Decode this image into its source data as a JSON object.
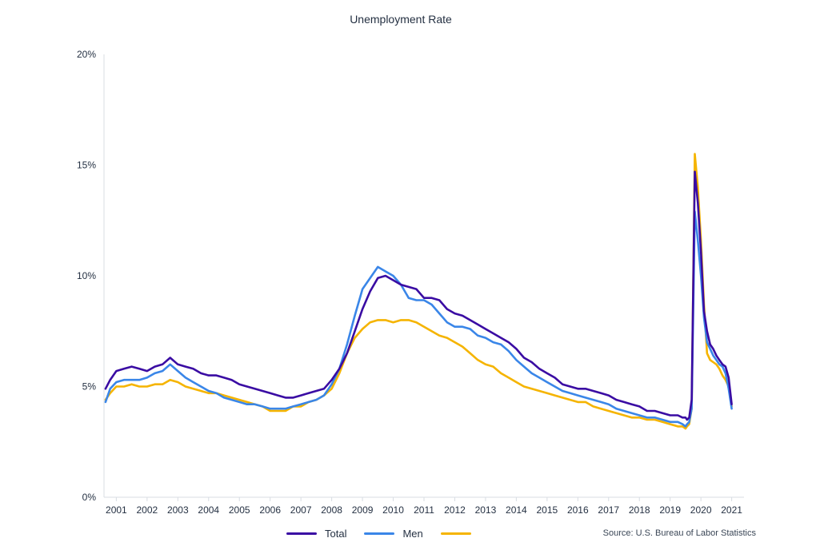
{
  "chart_data": {
    "type": "line",
    "title": "Unemployment Rate",
    "ylim": [
      0,
      20
    ],
    "y_ticks": [
      "0%",
      "5%",
      "10%",
      "15%",
      "20%"
    ],
    "y_tick_values": [
      0,
      5,
      10,
      15,
      20
    ],
    "xlim": [
      2000.6,
      2021.4
    ],
    "x_ticks": [
      "2001",
      "2002",
      "2003",
      "2004",
      "2005",
      "2006",
      "2007",
      "2008",
      "2009",
      "2010",
      "2011",
      "2012",
      "2013",
      "2014",
      "2015",
      "2016",
      "2017",
      "2018",
      "2019",
      "2020",
      "2021"
    ],
    "x_tick_values": [
      2001,
      2002,
      2003,
      2004,
      2005,
      2006,
      2007,
      2008,
      2009,
      2010,
      2011,
      2012,
      2013,
      2014,
      2015,
      2016,
      2017,
      2018,
      2019,
      2020,
      2021
    ],
    "grid": false,
    "legend_position": "bottom",
    "series": [
      {
        "name": "Total",
        "color": "#3a0ca3",
        "x": [
          2000.65,
          2000.8,
          2001.0,
          2001.25,
          2001.5,
          2001.75,
          2002.0,
          2002.25,
          2002.5,
          2002.75,
          2003.0,
          2003.25,
          2003.5,
          2003.75,
          2004.0,
          2004.25,
          2004.5,
          2004.75,
          2005.0,
          2005.25,
          2005.5,
          2005.75,
          2006.0,
          2006.25,
          2006.5,
          2006.75,
          2007.0,
          2007.25,
          2007.5,
          2007.75,
          2008.0,
          2008.25,
          2008.5,
          2008.75,
          2009.0,
          2009.25,
          2009.5,
          2009.75,
          2010.0,
          2010.25,
          2010.5,
          2010.75,
          2011.0,
          2011.25,
          2011.5,
          2011.75,
          2012.0,
          2012.25,
          2012.5,
          2012.75,
          2013.0,
          2013.25,
          2013.5,
          2013.75,
          2014.0,
          2014.25,
          2014.5,
          2014.75,
          2015.0,
          2015.25,
          2015.5,
          2015.75,
          2016.0,
          2016.25,
          2016.5,
          2016.75,
          2017.0,
          2017.25,
          2017.5,
          2017.75,
          2018.0,
          2018.25,
          2018.5,
          2018.75,
          2019.0,
          2019.25,
          2019.4,
          2019.5,
          2019.55,
          2019.62,
          2019.7,
          2019.8,
          2019.9,
          2020.0,
          2020.1,
          2020.2,
          2020.3,
          2020.4,
          2020.5,
          2020.6,
          2020.7,
          2020.8,
          2020.9,
          2021.0
        ],
        "y": [
          4.9,
          5.3,
          5.7,
          5.8,
          5.9,
          5.8,
          5.7,
          5.9,
          6.0,
          6.3,
          6.0,
          5.9,
          5.8,
          5.6,
          5.5,
          5.5,
          5.4,
          5.3,
          5.1,
          5.0,
          4.9,
          4.8,
          4.7,
          4.6,
          4.5,
          4.5,
          4.6,
          4.7,
          4.8,
          4.9,
          5.3,
          5.8,
          6.5,
          7.5,
          8.5,
          9.3,
          9.9,
          10.0,
          9.8,
          9.6,
          9.5,
          9.4,
          9.0,
          9.0,
          8.9,
          8.5,
          8.3,
          8.2,
          8.0,
          7.8,
          7.6,
          7.4,
          7.2,
          7.0,
          6.7,
          6.3,
          6.1,
          5.8,
          5.6,
          5.4,
          5.1,
          5.0,
          4.9,
          4.9,
          4.8,
          4.7,
          4.6,
          4.4,
          4.3,
          4.2,
          4.1,
          3.9,
          3.9,
          3.8,
          3.7,
          3.7,
          3.6,
          3.6,
          3.5,
          3.6,
          4.4,
          14.7,
          13.3,
          11.1,
          8.4,
          7.5,
          6.9,
          6.7,
          6.4,
          6.2,
          6.0,
          5.9,
          5.4,
          4.2
        ]
      },
      {
        "name": "Men",
        "color": "#3a86e8",
        "x": [
          2000.65,
          2000.8,
          2001.0,
          2001.25,
          2001.5,
          2001.75,
          2002.0,
          2002.25,
          2002.5,
          2002.75,
          2003.0,
          2003.25,
          2003.5,
          2003.75,
          2004.0,
          2004.25,
          2004.5,
          2004.75,
          2005.0,
          2005.25,
          2005.5,
          2005.75,
          2006.0,
          2006.25,
          2006.5,
          2006.75,
          2007.0,
          2007.25,
          2007.5,
          2007.75,
          2008.0,
          2008.25,
          2008.5,
          2008.75,
          2009.0,
          2009.25,
          2009.5,
          2009.75,
          2010.0,
          2010.25,
          2010.5,
          2010.75,
          2011.0,
          2011.25,
          2011.5,
          2011.75,
          2012.0,
          2012.25,
          2012.5,
          2012.75,
          2013.0,
          2013.25,
          2013.5,
          2013.75,
          2014.0,
          2014.25,
          2014.5,
          2014.75,
          2015.0,
          2015.25,
          2015.5,
          2015.75,
          2016.0,
          2016.25,
          2016.5,
          2016.75,
          2017.0,
          2017.25,
          2017.5,
          2017.75,
          2018.0,
          2018.25,
          2018.5,
          2018.75,
          2019.0,
          2019.25,
          2019.4,
          2019.5,
          2019.55,
          2019.62,
          2019.7,
          2019.8,
          2019.9,
          2020.0,
          2020.1,
          2020.2,
          2020.3,
          2020.4,
          2020.5,
          2020.6,
          2020.7,
          2020.8,
          2020.9,
          2021.0
        ],
        "y": [
          4.3,
          4.9,
          5.2,
          5.3,
          5.3,
          5.3,
          5.4,
          5.6,
          5.7,
          6.0,
          5.7,
          5.4,
          5.2,
          5.0,
          4.8,
          4.7,
          4.5,
          4.4,
          4.3,
          4.2,
          4.2,
          4.1,
          4.0,
          4.0,
          4.0,
          4.1,
          4.2,
          4.3,
          4.4,
          4.6,
          5.1,
          5.8,
          6.9,
          8.2,
          9.4,
          9.9,
          10.4,
          10.2,
          10.0,
          9.6,
          9.0,
          8.9,
          8.9,
          8.7,
          8.3,
          7.9,
          7.7,
          7.7,
          7.6,
          7.3,
          7.2,
          7.0,
          6.9,
          6.6,
          6.2,
          5.9,
          5.6,
          5.4,
          5.2,
          5.0,
          4.8,
          4.7,
          4.6,
          4.5,
          4.4,
          4.3,
          4.2,
          4.0,
          3.9,
          3.8,
          3.7,
          3.6,
          3.6,
          3.5,
          3.4,
          3.4,
          3.3,
          3.2,
          3.3,
          3.4,
          4.0,
          12.9,
          11.6,
          10.0,
          8.1,
          7.0,
          6.7,
          6.4,
          6.2,
          6.0,
          5.9,
          5.6,
          4.9,
          4.0
        ]
      },
      {
        "name": "",
        "color": "#f5b400",
        "x": [
          2000.65,
          2000.8,
          2001.0,
          2001.25,
          2001.5,
          2001.75,
          2002.0,
          2002.25,
          2002.5,
          2002.75,
          2003.0,
          2003.25,
          2003.5,
          2003.75,
          2004.0,
          2004.25,
          2004.5,
          2004.75,
          2005.0,
          2005.25,
          2005.5,
          2005.75,
          2006.0,
          2006.25,
          2006.5,
          2006.75,
          2007.0,
          2007.25,
          2007.5,
          2007.75,
          2008.0,
          2008.25,
          2008.5,
          2008.75,
          2009.0,
          2009.25,
          2009.5,
          2009.75,
          2010.0,
          2010.25,
          2010.5,
          2010.75,
          2011.0,
          2011.25,
          2011.5,
          2011.75,
          2012.0,
          2012.25,
          2012.5,
          2012.75,
          2013.0,
          2013.25,
          2013.5,
          2013.75,
          2014.0,
          2014.25,
          2014.5,
          2014.75,
          2015.0,
          2015.25,
          2015.5,
          2015.75,
          2016.0,
          2016.25,
          2016.5,
          2016.75,
          2017.0,
          2017.25,
          2017.5,
          2017.75,
          2018.0,
          2018.25,
          2018.5,
          2018.75,
          2019.0,
          2019.25,
          2019.4,
          2019.5,
          2019.55,
          2019.62,
          2019.7,
          2019.8,
          2019.9,
          2020.0,
          2020.1,
          2020.2,
          2020.3,
          2020.4,
          2020.5,
          2020.6,
          2020.7,
          2020.8,
          2020.9,
          2021.0
        ],
        "y": [
          4.4,
          4.7,
          5.0,
          5.0,
          5.1,
          5.0,
          5.0,
          5.1,
          5.1,
          5.3,
          5.2,
          5.0,
          4.9,
          4.8,
          4.7,
          4.7,
          4.6,
          4.5,
          4.4,
          4.3,
          4.2,
          4.1,
          3.9,
          3.9,
          3.9,
          4.1,
          4.1,
          4.3,
          4.4,
          4.6,
          4.9,
          5.6,
          6.5,
          7.2,
          7.6,
          7.9,
          8.0,
          8.0,
          7.9,
          8.0,
          8.0,
          7.9,
          7.7,
          7.5,
          7.3,
          7.2,
          7.0,
          6.8,
          6.5,
          6.2,
          6.0,
          5.9,
          5.6,
          5.4,
          5.2,
          5.0,
          4.9,
          4.8,
          4.7,
          4.6,
          4.5,
          4.4,
          4.3,
          4.3,
          4.1,
          4.0,
          3.9,
          3.8,
          3.7,
          3.6,
          3.6,
          3.5,
          3.5,
          3.4,
          3.3,
          3.2,
          3.2,
          3.1,
          3.2,
          3.3,
          4.0,
          15.5,
          14.0,
          11.6,
          8.7,
          6.5,
          6.2,
          6.1,
          6.0,
          5.8,
          5.5,
          5.3,
          5.0,
          4.1
        ]
      }
    ],
    "source": "Source: U.S. Bureau of Labor Statistics"
  }
}
